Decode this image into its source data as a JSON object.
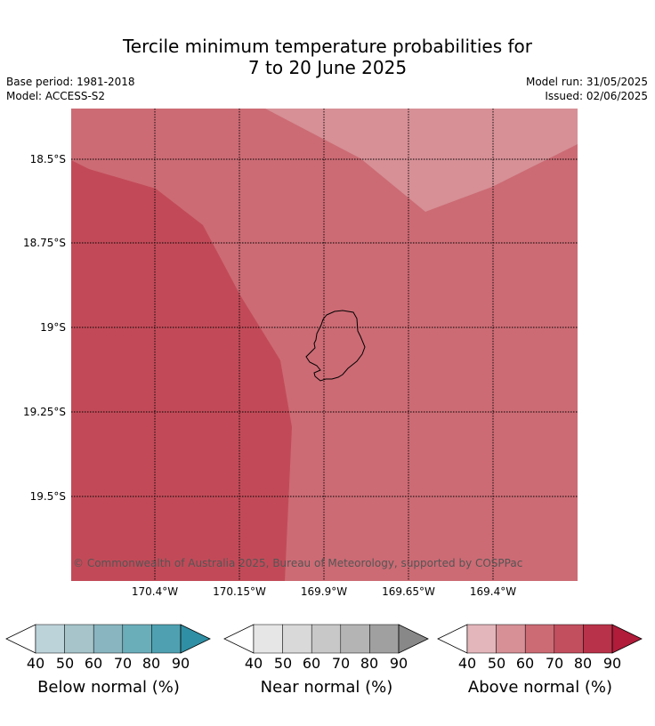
{
  "title": {
    "line1": "Tercile minimum temperature probabilities for",
    "line2": "7 to 20 June 2025"
  },
  "meta": {
    "base_period": "Base period: 1981-2018",
    "model": "Model: ACCESS-S2",
    "model_run": "Model run: 31/05/2025",
    "issued": "Issued: 02/06/2025"
  },
  "map": {
    "latitude_labels": [
      "18.5°S",
      "18.75°S",
      "19°S",
      "19.25°S",
      "19.5°S"
    ],
    "longitude_labels": [
      "170.4°W",
      "170.15°W",
      "169.9°W",
      "169.65°W",
      "169.4°W"
    ],
    "copyright": "© Commonwealth of Australia 2025, Bureau of Meteorology, supported by COSPPac",
    "colors": {
      "above_50": "#d69096",
      "above_60": "#cc6b74",
      "above_70": "#c24a58"
    }
  },
  "legends": [
    {
      "title": "Below normal (%)",
      "ticks": [
        "40",
        "50",
        "60",
        "70",
        "80",
        "90"
      ],
      "colors": [
        "#bdd3da",
        "#a6c4ca",
        "#88b5c0",
        "#6aaeba",
        "#4fa1b1",
        "#2f8fa4"
      ]
    },
    {
      "title": "Near normal (%)",
      "ticks": [
        "40",
        "50",
        "60",
        "70",
        "80",
        "90"
      ],
      "colors": [
        "#e6e6e6",
        "#d9d9d9",
        "#c8c8c8",
        "#b4b4b4",
        "#a0a0a0",
        "#888888"
      ]
    },
    {
      "title": "Above normal (%)",
      "ticks": [
        "40",
        "50",
        "60",
        "70",
        "80",
        "90"
      ],
      "colors": [
        "#e2b6ba",
        "#d69096",
        "#cc6b74",
        "#c24f5e",
        "#b83249",
        "#b01c3a"
      ]
    }
  ]
}
